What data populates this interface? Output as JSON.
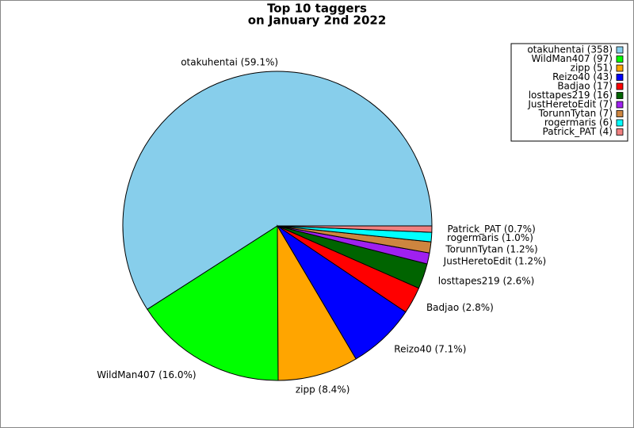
{
  "chart_data": {
    "type": "pie",
    "title": [
      "Top 10 taggers",
      "on January 2nd 2022"
    ],
    "values": [
      358,
      97,
      51,
      43,
      17,
      16,
      7,
      7,
      6,
      4
    ],
    "legend_labels": [
      "otakuhentai (358)",
      "WildMan407 (97)",
      "zipp (51)",
      "Reizo40 (43)",
      "Badjao (17)",
      "losttapes219 (16)",
      "JustHeretoEdit (7)",
      "TorunnTytan (7)",
      "rogermaris (6)",
      "Patrick_PAT (4)"
    ],
    "value_labels": [
      "otakuhentai (59.1%)",
      "WildMan407 (16.0%)",
      "zipp (8.4%)",
      "Reizo40 (7.1%)",
      "Badjao (2.8%)",
      "losttapes219 (2.6%)",
      "JustHeretoEdit (1.2%)",
      "TorunnTytan (1.2%)",
      "rogermaris (1.0%)",
      "Patrick_PAT (0.7%)"
    ],
    "colors": [
      "#87ceeb",
      "#00ff00",
      "#ffa500",
      "#0000ff",
      "#ff0000",
      "#006400",
      "#a020f0",
      "#cd853f",
      "#00ffff",
      "#f08080"
    ],
    "legend": "upper right"
  }
}
